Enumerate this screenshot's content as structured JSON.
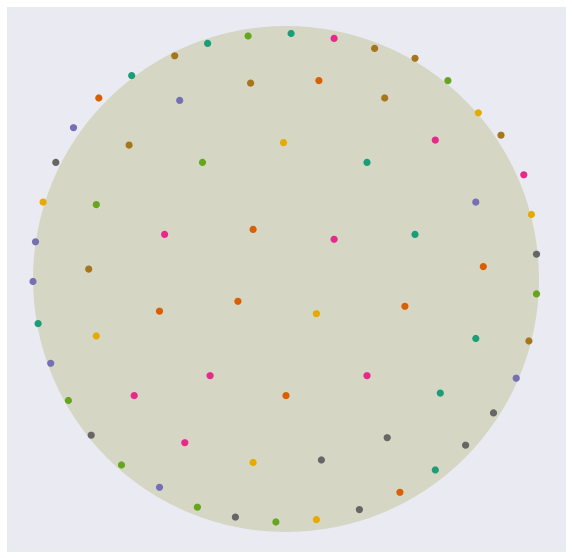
{
  "chart_data": {
    "type": "scatter",
    "title": "",
    "xlabel": "",
    "ylabel": "",
    "grid": false,
    "legend": "none",
    "background_color": "#eaeaf2",
    "disk_color": "#d6d6c4",
    "xlim": [
      -1.04,
      1.04
    ],
    "ylim": [
      -1.04,
      1.04
    ],
    "disk": {
      "center": [
        0,
        0
      ],
      "radius": 1.0
    },
    "palette": {
      "teal": "#1b9e77",
      "orange": "#d95f02",
      "purple": "#7570b3",
      "magenta": "#e7298a",
      "green": "#66a61e",
      "gold": "#e6ab02",
      "brown": "#a6761d",
      "gray": "#666666"
    },
    "points": [
      {
        "x": 0.02,
        "y": 0.99,
        "color": "teal"
      },
      {
        "x": -0.15,
        "y": 0.98,
        "color": "green"
      },
      {
        "x": 0.19,
        "y": 0.97,
        "color": "magenta"
      },
      {
        "x": -0.31,
        "y": 0.95,
        "color": "teal"
      },
      {
        "x": 0.35,
        "y": 0.93,
        "color": "brown"
      },
      {
        "x": -0.44,
        "y": 0.9,
        "color": "brown"
      },
      {
        "x": 0.51,
        "y": 0.89,
        "color": "brown"
      },
      {
        "x": -0.61,
        "y": 0.82,
        "color": "teal"
      },
      {
        "x": -0.14,
        "y": 0.79,
        "color": "brown"
      },
      {
        "x": 0.13,
        "y": 0.8,
        "color": "orange"
      },
      {
        "x": 0.64,
        "y": 0.8,
        "color": "green"
      },
      {
        "x": -0.74,
        "y": 0.73,
        "color": "orange"
      },
      {
        "x": -0.42,
        "y": 0.72,
        "color": "purple"
      },
      {
        "x": 0.39,
        "y": 0.73,
        "color": "brown"
      },
      {
        "x": 0.76,
        "y": 0.67,
        "color": "gold"
      },
      {
        "x": -0.84,
        "y": 0.61,
        "color": "purple"
      },
      {
        "x": -0.62,
        "y": 0.54,
        "color": "brown"
      },
      {
        "x": -0.01,
        "y": 0.55,
        "color": "gold"
      },
      {
        "x": 0.59,
        "y": 0.56,
        "color": "magenta"
      },
      {
        "x": 0.85,
        "y": 0.58,
        "color": "brown"
      },
      {
        "x": -0.91,
        "y": 0.47,
        "color": "gray"
      },
      {
        "x": -0.33,
        "y": 0.47,
        "color": "green"
      },
      {
        "x": 0.32,
        "y": 0.47,
        "color": "teal"
      },
      {
        "x": 0.94,
        "y": 0.42,
        "color": "magenta"
      },
      {
        "x": -0.96,
        "y": 0.31,
        "color": "gold"
      },
      {
        "x": -0.75,
        "y": 0.3,
        "color": "green"
      },
      {
        "x": 0.75,
        "y": 0.31,
        "color": "purple"
      },
      {
        "x": 0.97,
        "y": 0.26,
        "color": "gold"
      },
      {
        "x": -0.48,
        "y": 0.18,
        "color": "magenta"
      },
      {
        "x": -0.13,
        "y": 0.2,
        "color": "orange"
      },
      {
        "x": 0.19,
        "y": 0.16,
        "color": "magenta"
      },
      {
        "x": 0.51,
        "y": 0.18,
        "color": "teal"
      },
      {
        "x": -0.99,
        "y": 0.15,
        "color": "purple"
      },
      {
        "x": 0.99,
        "y": 0.1,
        "color": "gray"
      },
      {
        "x": -0.78,
        "y": 0.04,
        "color": "brown"
      },
      {
        "x": 0.78,
        "y": 0.05,
        "color": "orange"
      },
      {
        "x": -1.0,
        "y": -0.01,
        "color": "purple"
      },
      {
        "x": 0.99,
        "y": -0.06,
        "color": "green"
      },
      {
        "x": -0.5,
        "y": -0.13,
        "color": "orange"
      },
      {
        "x": -0.19,
        "y": -0.09,
        "color": "orange"
      },
      {
        "x": 0.12,
        "y": -0.14,
        "color": "gold"
      },
      {
        "x": 0.47,
        "y": -0.11,
        "color": "orange"
      },
      {
        "x": -0.98,
        "y": -0.18,
        "color": "teal"
      },
      {
        "x": -0.75,
        "y": -0.23,
        "color": "gold"
      },
      {
        "x": 0.75,
        "y": -0.24,
        "color": "teal"
      },
      {
        "x": 0.96,
        "y": -0.25,
        "color": "brown"
      },
      {
        "x": -0.93,
        "y": -0.34,
        "color": "purple"
      },
      {
        "x": -0.3,
        "y": -0.39,
        "color": "magenta"
      },
      {
        "x": 0.32,
        "y": -0.39,
        "color": "magenta"
      },
      {
        "x": 0.91,
        "y": -0.4,
        "color": "purple"
      },
      {
        "x": -0.86,
        "y": -0.49,
        "color": "green"
      },
      {
        "x": -0.6,
        "y": -0.47,
        "color": "magenta"
      },
      {
        "x": 0.0,
        "y": -0.47,
        "color": "orange"
      },
      {
        "x": 0.61,
        "y": -0.46,
        "color": "teal"
      },
      {
        "x": 0.82,
        "y": -0.54,
        "color": "gray"
      },
      {
        "x": -0.77,
        "y": -0.63,
        "color": "gray"
      },
      {
        "x": -0.4,
        "y": -0.66,
        "color": "magenta"
      },
      {
        "x": 0.4,
        "y": -0.64,
        "color": "gray"
      },
      {
        "x": 0.71,
        "y": -0.67,
        "color": "gray"
      },
      {
        "x": -0.65,
        "y": -0.75,
        "color": "green"
      },
      {
        "x": -0.13,
        "y": -0.74,
        "color": "gold"
      },
      {
        "x": 0.14,
        "y": -0.73,
        "color": "gray"
      },
      {
        "x": 0.59,
        "y": -0.77,
        "color": "teal"
      },
      {
        "x": -0.5,
        "y": -0.84,
        "color": "purple"
      },
      {
        "x": 0.45,
        "y": -0.86,
        "color": "orange"
      },
      {
        "x": -0.35,
        "y": -0.92,
        "color": "green"
      },
      {
        "x": -0.2,
        "y": -0.96,
        "color": "gray"
      },
      {
        "x": 0.29,
        "y": -0.93,
        "color": "gray"
      },
      {
        "x": -0.04,
        "y": -0.98,
        "color": "green"
      },
      {
        "x": 0.12,
        "y": -0.97,
        "color": "gold"
      }
    ]
  }
}
